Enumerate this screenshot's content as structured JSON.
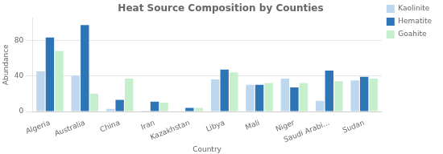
{
  "chart_data": {
    "type": "bar",
    "title": "Heat Source Composition by Counties",
    "xlabel": "Country",
    "ylabel": "Abundance",
    "categories": [
      "Algeria",
      "Australia",
      "China",
      "Iran",
      "Kazakhstan",
      "Libya",
      "Mali",
      "Niger",
      "Saudi Arabi...",
      "Sudan"
    ],
    "series": [
      {
        "name": "Kaolinite",
        "color": "#BDD7EE",
        "values": [
          45,
          40,
          3,
          1,
          0,
          36,
          30,
          37,
          12,
          35
        ]
      },
      {
        "name": "Hematite",
        "color": "#2E75B6",
        "values": [
          83,
          97,
          13,
          11,
          4,
          47,
          30,
          27,
          46,
          39
        ]
      },
      {
        "name": "Goahite",
        "color": "#C6EFCE",
        "values": [
          68,
          20,
          37,
          10,
          4,
          44,
          32,
          32,
          34,
          37
        ]
      }
    ],
    "ylim": [
      0,
      105
    ],
    "yticks": [
      0,
      40,
      80
    ],
    "grid": true,
    "legend": "upper right"
  }
}
